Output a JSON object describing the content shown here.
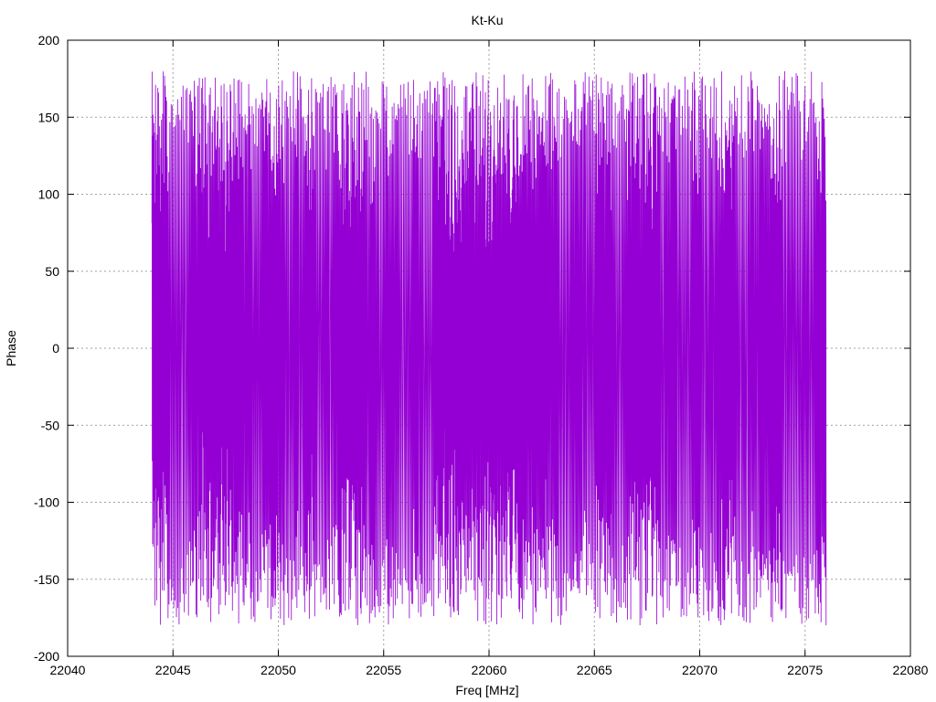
{
  "chart_data": {
    "type": "line",
    "title": "Kt-Ku",
    "xlabel": "Freq [MHz]",
    "ylabel": "Phase",
    "xlim": [
      22040,
      22080
    ],
    "ylim": [
      -200,
      200
    ],
    "x_ticks": [
      22040,
      22045,
      22050,
      22055,
      22060,
      22065,
      22070,
      22075,
      22080
    ],
    "y_ticks": [
      -200,
      -150,
      -100,
      -50,
      0,
      50,
      100,
      150,
      200
    ],
    "grid": true,
    "legend": "none",
    "series": [
      {
        "color": "#9400d3",
        "x_start": 22044.0,
        "x_end": 22076.0,
        "point_count": 4097,
        "value_range": [
          -180,
          180
        ],
        "character": "wrapped phase oscillating rapidly between -180 and 180 degrees"
      }
    ]
  },
  "colors": {
    "series": "#9400d3",
    "axis": "#000000",
    "grid": "#a0a0a0"
  }
}
